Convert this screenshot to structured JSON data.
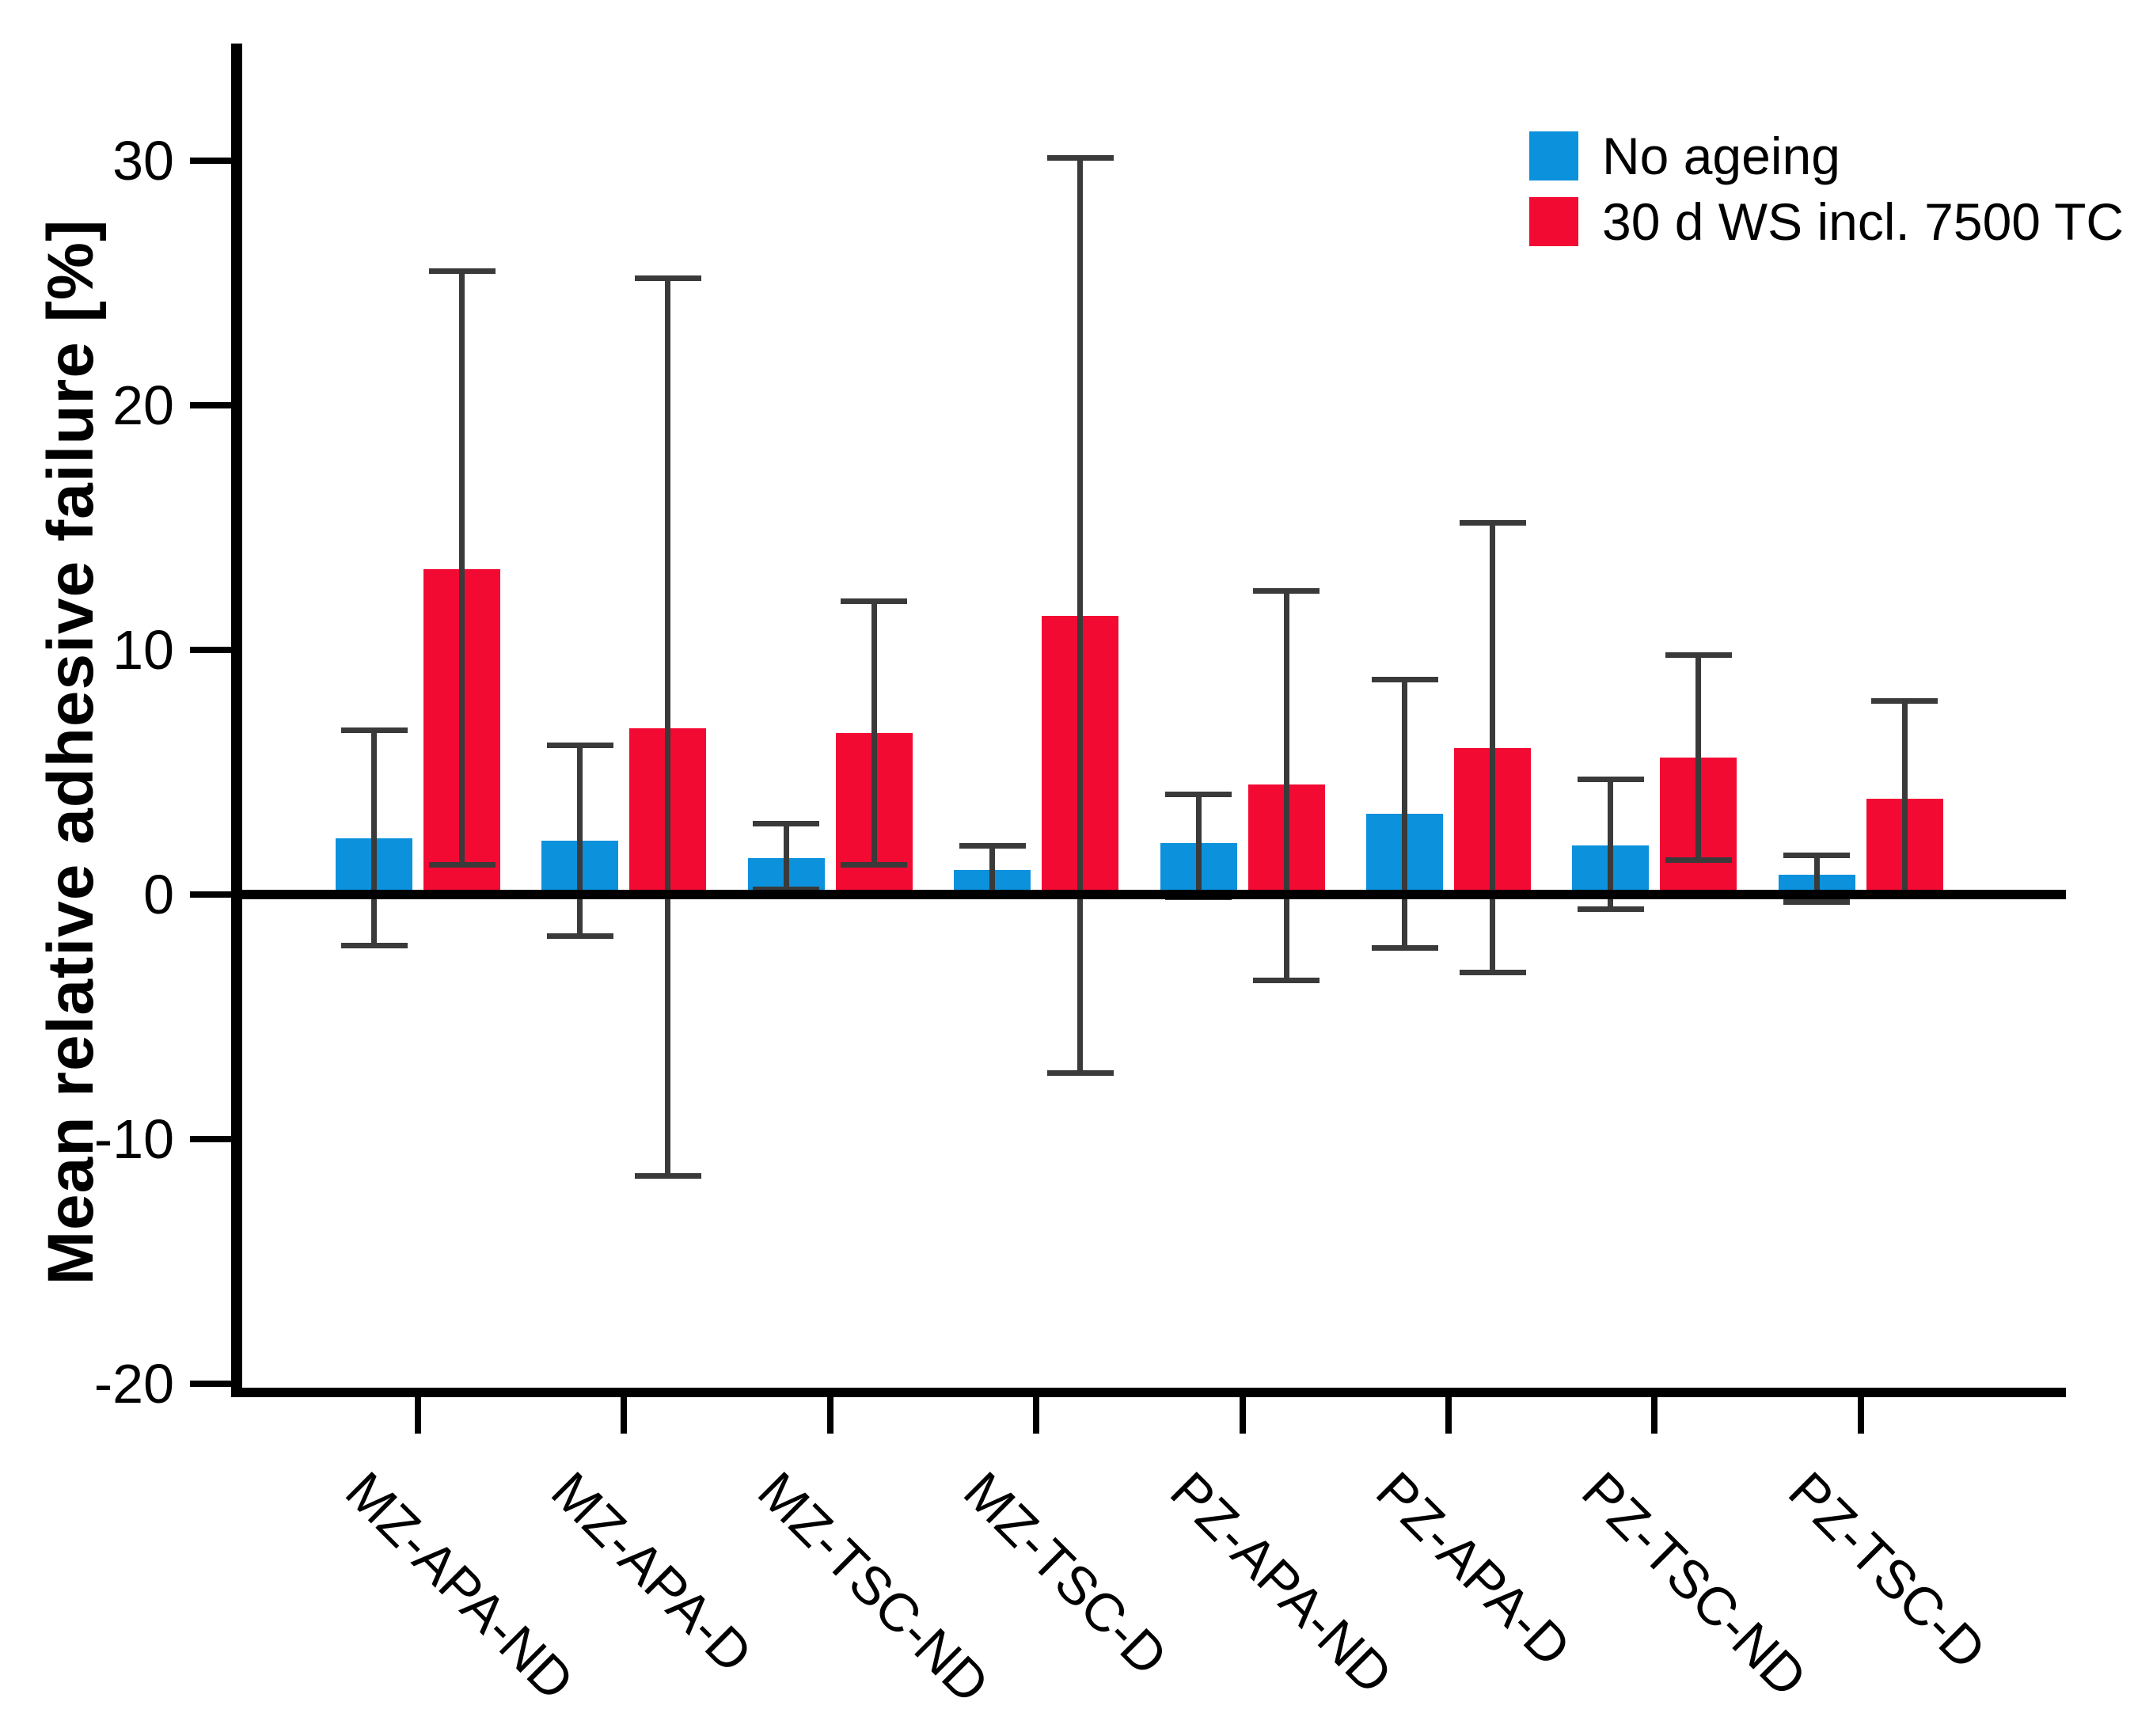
{
  "figure": {
    "ylabel": "Mean relative adhesive failure [%]",
    "colors": {
      "no_ageing_blue": "#0C91DD",
      "aged_red": "#F20A33",
      "error_bar": "#3A3A3A",
      "axis": "#000000"
    }
  },
  "chart_data": {
    "type": "bar",
    "title": "",
    "xlabel": "",
    "ylabel": "Mean relative adhesive failure [%]",
    "ylim": [
      -21.5,
      34.5
    ],
    "yticks": [
      -20,
      -10,
      0,
      10,
      20,
      30
    ],
    "grid": false,
    "legend_position": "top-right",
    "bar_style": "grouped bars with SD error bars (caps), baseline at 0",
    "categories": [
      "MZ-APA-ND",
      "MZ-APA-D",
      "MZ-TSC-ND",
      "MZ-TSC-D",
      "PZ-APA-ND",
      "PZ-APA-D",
      "PZ-TSC-ND",
      "PZ-TSC-D"
    ],
    "series": [
      {
        "name": "No ageing",
        "color": "#0C91DD",
        "values": [
          2.3,
          2.2,
          1.5,
          1.0,
          2.1,
          3.3,
          2.0,
          0.8
        ],
        "error_bar_low": [
          -2.1,
          -1.7,
          0.2,
          0.0,
          -0.1,
          -2.2,
          -0.6,
          -0.3
        ],
        "error_bar_high": [
          6.7,
          6.1,
          2.9,
          2.0,
          4.1,
          8.8,
          4.7,
          1.6
        ]
      },
      {
        "name": "30 d WS incl. 7500 TC",
        "color": "#F20A33",
        "values": [
          13.3,
          6.8,
          6.6,
          11.4,
          4.5,
          6.0,
          5.6,
          3.9
        ],
        "error_bar_low": [
          1.2,
          -11.5,
          1.2,
          -7.3,
          -3.5,
          -3.2,
          1.4,
          0.0
        ],
        "error_bar_high": [
          25.5,
          25.2,
          12.0,
          30.1,
          12.4,
          15.2,
          9.8,
          7.9
        ]
      }
    ]
  }
}
